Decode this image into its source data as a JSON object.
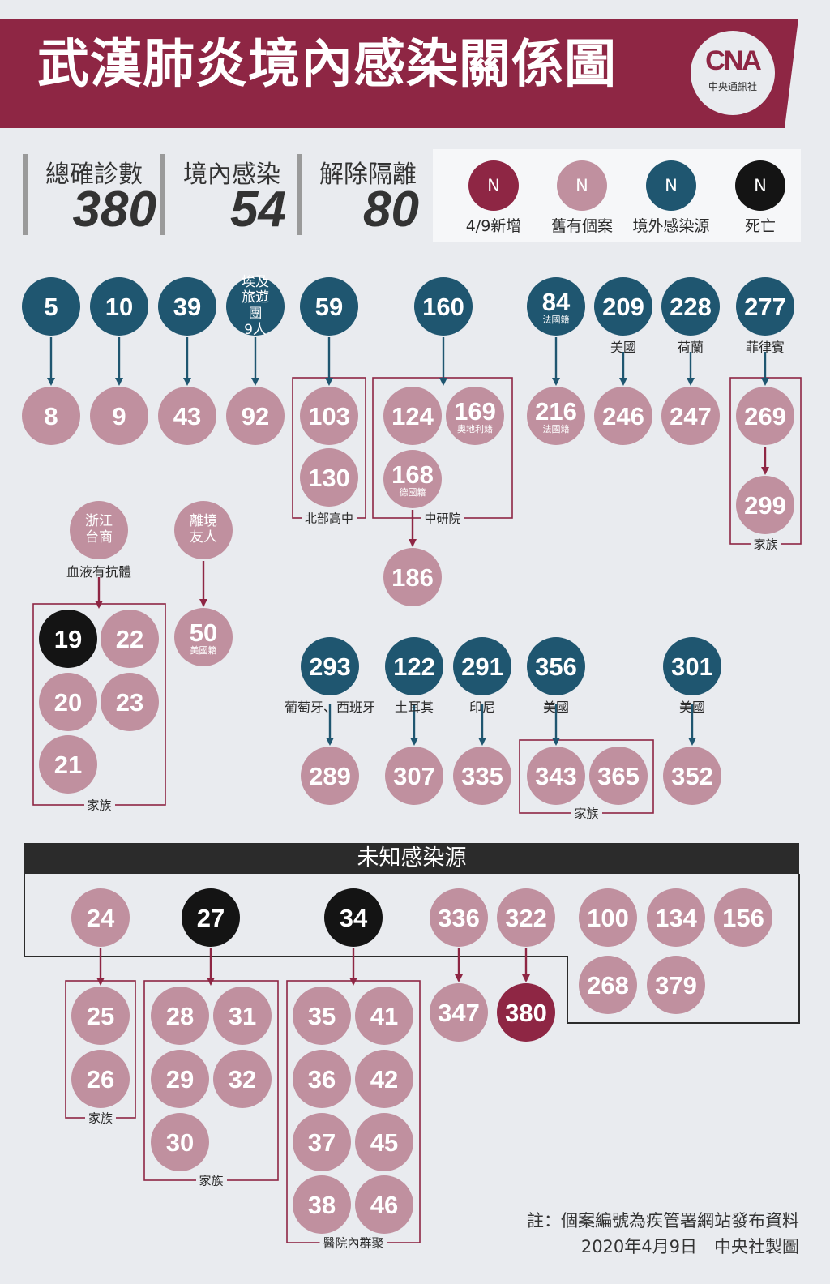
{
  "header": {
    "title": "武漢肺炎境內感染關係圖",
    "logo_text": "CNA",
    "logo_caption": "中央通訊社"
  },
  "stats": [
    {
      "label": "總確診數",
      "value": "380"
    },
    {
      "label": "境內感染",
      "value": "54"
    },
    {
      "label": "解除隔離",
      "value": "80"
    }
  ],
  "legend": [
    {
      "symbol": "N",
      "label": "4/9新增",
      "color": "#8e2644"
    },
    {
      "symbol": "N",
      "label": "舊有個案",
      "color": "#c0909f"
    },
    {
      "symbol": "N",
      "label": "境外感染源",
      "color": "#1f5670"
    },
    {
      "symbol": "N",
      "label": "死亡",
      "color": "#141414"
    }
  ],
  "colors": {
    "new": "#8e2644",
    "old": "#c0909f",
    "imported": "#1f5670",
    "death": "#141414",
    "arrow_imported": "#1f5670",
    "arrow_local": "#8e2644",
    "banner": "#8e2644"
  },
  "nodes": [
    {
      "id": "5",
      "label": "5",
      "type": "imported"
    },
    {
      "id": "10",
      "label": "10",
      "type": "imported"
    },
    {
      "id": "39",
      "label": "39",
      "type": "imported"
    },
    {
      "id": "egypt",
      "label": "埃及旅遊團",
      "sub": "9人",
      "type": "imported",
      "small": true
    },
    {
      "id": "59",
      "label": "59",
      "type": "imported"
    },
    {
      "id": "160",
      "label": "160",
      "type": "imported"
    },
    {
      "id": "84",
      "label": "84",
      "sub": "法國籍",
      "type": "imported"
    },
    {
      "id": "209",
      "label": "209",
      "type": "imported"
    },
    {
      "id": "228",
      "label": "228",
      "type": "imported"
    },
    {
      "id": "277",
      "label": "277",
      "type": "imported"
    },
    {
      "id": "8",
      "label": "8",
      "type": "old"
    },
    {
      "id": "9",
      "label": "9",
      "type": "old"
    },
    {
      "id": "43",
      "label": "43",
      "type": "old"
    },
    {
      "id": "92",
      "label": "92",
      "type": "old"
    },
    {
      "id": "103",
      "label": "103",
      "type": "old"
    },
    {
      "id": "130",
      "label": "130",
      "type": "old"
    },
    {
      "id": "124",
      "label": "124",
      "type": "old"
    },
    {
      "id": "169",
      "label": "169",
      "sub": "奧地利籍",
      "type": "old"
    },
    {
      "id": "168",
      "label": "168",
      "sub": "德國籍",
      "type": "old"
    },
    {
      "id": "186",
      "label": "186",
      "type": "old"
    },
    {
      "id": "216",
      "label": "216",
      "sub": "法國籍",
      "type": "old"
    },
    {
      "id": "246",
      "label": "246",
      "type": "old"
    },
    {
      "id": "247",
      "label": "247",
      "type": "old"
    },
    {
      "id": "269",
      "label": "269",
      "type": "old"
    },
    {
      "id": "299",
      "label": "299",
      "type": "old"
    },
    {
      "id": "zj",
      "label": "浙江台商",
      "type": "old",
      "small": true
    },
    {
      "id": "friend",
      "label": "離境友人",
      "type": "old",
      "small": true
    },
    {
      "id": "19",
      "label": "19",
      "type": "death"
    },
    {
      "id": "22",
      "label": "22",
      "type": "old"
    },
    {
      "id": "20",
      "label": "20",
      "type": "old"
    },
    {
      "id": "23",
      "label": "23",
      "type": "old"
    },
    {
      "id": "21",
      "label": "21",
      "type": "old"
    },
    {
      "id": "50",
      "label": "50",
      "sub": "美國籍",
      "type": "old"
    },
    {
      "id": "293",
      "label": "293",
      "type": "imported"
    },
    {
      "id": "122",
      "label": "122",
      "type": "imported"
    },
    {
      "id": "291",
      "label": "291",
      "type": "imported"
    },
    {
      "id": "356",
      "label": "356",
      "type": "imported"
    },
    {
      "id": "301",
      "label": "301",
      "type": "imported"
    },
    {
      "id": "289",
      "label": "289",
      "type": "old"
    },
    {
      "id": "307",
      "label": "307",
      "type": "old"
    },
    {
      "id": "335",
      "label": "335",
      "type": "old"
    },
    {
      "id": "343",
      "label": "343",
      "type": "old"
    },
    {
      "id": "365",
      "label": "365",
      "type": "old"
    },
    {
      "id": "352",
      "label": "352",
      "type": "old"
    },
    {
      "id": "24",
      "label": "24",
      "type": "old"
    },
    {
      "id": "27",
      "label": "27",
      "type": "death"
    },
    {
      "id": "34",
      "label": "34",
      "type": "death"
    },
    {
      "id": "336",
      "label": "336",
      "type": "old"
    },
    {
      "id": "322",
      "label": "322",
      "type": "old"
    },
    {
      "id": "100",
      "label": "100",
      "type": "old"
    },
    {
      "id": "134",
      "label": "134",
      "type": "old"
    },
    {
      "id": "156",
      "label": "156",
      "type": "old"
    },
    {
      "id": "268",
      "label": "268",
      "type": "old"
    },
    {
      "id": "379",
      "label": "379",
      "type": "old"
    },
    {
      "id": "25",
      "label": "25",
      "type": "old"
    },
    {
      "id": "26",
      "label": "26",
      "type": "old"
    },
    {
      "id": "28",
      "label": "28",
      "type": "old"
    },
    {
      "id": "31",
      "label": "31",
      "type": "old"
    },
    {
      "id": "29",
      "label": "29",
      "type": "old"
    },
    {
      "id": "32",
      "label": "32",
      "type": "old"
    },
    {
      "id": "30",
      "label": "30",
      "type": "old"
    },
    {
      "id": "35",
      "label": "35",
      "type": "old"
    },
    {
      "id": "41",
      "label": "41",
      "type": "old"
    },
    {
      "id": "36",
      "label": "36",
      "type": "old"
    },
    {
      "id": "42",
      "label": "42",
      "type": "old"
    },
    {
      "id": "37",
      "label": "37",
      "type": "old"
    },
    {
      "id": "45",
      "label": "45",
      "type": "old"
    },
    {
      "id": "38",
      "label": "38",
      "type": "old"
    },
    {
      "id": "46",
      "label": "46",
      "type": "old"
    },
    {
      "id": "347",
      "label": "347",
      "type": "old"
    },
    {
      "id": "380",
      "label": "380",
      "type": "new"
    }
  ],
  "edges": [
    {
      "from": "5",
      "to": "8"
    },
    {
      "from": "10",
      "to": "9"
    },
    {
      "from": "39",
      "to": "43"
    },
    {
      "from": "egypt",
      "to": "92"
    },
    {
      "from": "59",
      "to": "103"
    },
    {
      "from": "160",
      "to": "124"
    },
    {
      "from": "84",
      "to": "216"
    },
    {
      "from": "209",
      "to": "246"
    },
    {
      "from": "228",
      "to": "247"
    },
    {
      "from": "277",
      "to": "269"
    },
    {
      "from": "269",
      "to": "299"
    },
    {
      "from": "168",
      "to": "186"
    },
    {
      "from": "zj",
      "to": "19"
    },
    {
      "from": "friend",
      "to": "50"
    },
    {
      "from": "293",
      "to": "289"
    },
    {
      "from": "122",
      "to": "307"
    },
    {
      "from": "291",
      "to": "335"
    },
    {
      "from": "356",
      "to": "343"
    },
    {
      "from": "301",
      "to": "352"
    },
    {
      "from": "24",
      "to": "25"
    },
    {
      "from": "27",
      "to": "28"
    },
    {
      "from": "34",
      "to": "35"
    },
    {
      "from": "336",
      "to": "347"
    },
    {
      "from": "322",
      "to": "380"
    }
  ],
  "country_labels": [
    {
      "node": "209",
      "text": "美國"
    },
    {
      "node": "228",
      "text": "荷蘭"
    },
    {
      "node": "277",
      "text": "菲律賓"
    },
    {
      "node": "293",
      "text": "葡萄牙、西班牙"
    },
    {
      "node": "122",
      "text": "土耳其"
    },
    {
      "node": "291",
      "text": "印尼"
    },
    {
      "node": "356",
      "text": "美國"
    },
    {
      "node": "301",
      "text": "美國"
    },
    {
      "node": "zj",
      "text": "血液有抗體"
    }
  ],
  "groups": [
    {
      "id": "north-hs",
      "label": "北部高中"
    },
    {
      "id": "academia",
      "label": "中研院"
    },
    {
      "id": "family-299",
      "label": "家族"
    },
    {
      "id": "family-19",
      "label": "家族"
    },
    {
      "id": "family-343",
      "label": "家族"
    },
    {
      "id": "family-25",
      "label": "家族"
    },
    {
      "id": "family-28",
      "label": "家族"
    },
    {
      "id": "hospital",
      "label": "醫院內群聚"
    }
  ],
  "unknown_section": {
    "title": "未知感染源"
  },
  "footer": {
    "note": "註：個案編號為疾管署網站發布資料",
    "date_credit": "2020年4月9日　中央社製圖"
  }
}
